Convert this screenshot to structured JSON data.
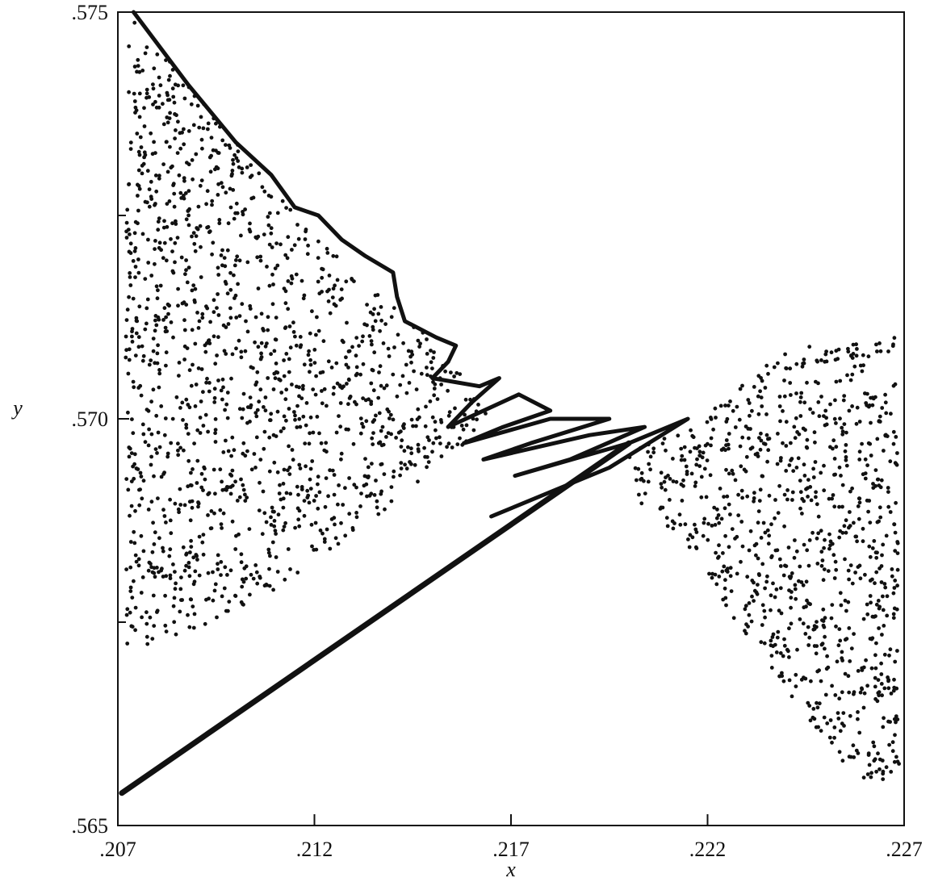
{
  "chart_data": {
    "type": "scatter",
    "title": "",
    "xlabel": "x",
    "ylabel": "y",
    "xlim": [
      0.207,
      0.227
    ],
    "ylim": [
      0.565,
      0.575
    ],
    "grid": false,
    "x_ticks": [
      ".207",
      ".212",
      ".217",
      ".222",
      ".227"
    ],
    "x_tick_values": [
      0.207,
      0.212,
      0.217,
      0.222,
      0.227
    ],
    "y_ticks": [
      ".575",
      ".570",
      ".565"
    ],
    "y_tick_values": [
      0.575,
      0.57,
      0.565
    ],
    "y_minor_ticks": [
      0.5725,
      0.5675
    ],
    "series": [
      {
        "kind": "points",
        "regions": [
          {
            "polygon": [
              [
                0.2072,
                0.575
              ],
              [
                0.2085,
                0.5743
              ],
              [
                0.2105,
                0.5731
              ],
              [
                0.2118,
                0.5724
              ],
              [
                0.2132,
                0.5717
              ],
              [
                0.2142,
                0.5713
              ],
              [
                0.2148,
                0.5711
              ],
              [
                0.2155,
                0.5707
              ],
              [
                0.2165,
                0.57
              ],
              [
                0.215,
                0.5693
              ],
              [
                0.213,
                0.5686
              ],
              [
                0.211,
                0.5679
              ],
              [
                0.209,
                0.5674
              ],
              [
                0.2072,
                0.5671
              ]
            ],
            "count": 1400
          },
          {
            "polygon": [
              [
                0.22,
                0.5696
              ],
              [
                0.2218,
                0.57
              ],
              [
                0.224,
                0.5709
              ],
              [
                0.2252,
                0.5709
              ],
              [
                0.2268,
                0.571
              ],
              [
                0.2269,
                0.5655
              ],
              [
                0.2258,
                0.5656
              ],
              [
                0.2245,
                0.5663
              ],
              [
                0.223,
                0.5673
              ],
              [
                0.2215,
                0.5684
              ],
              [
                0.22,
                0.5691
              ]
            ],
            "count": 900
          }
        ]
      },
      {
        "kind": "curve",
        "points": [
          [
            0.2074,
            0.575
          ],
          [
            0.2088,
            0.5741
          ],
          [
            0.21,
            0.5734
          ],
          [
            0.2109,
            0.573
          ],
          [
            0.2115,
            0.5726
          ],
          [
            0.2121,
            0.5725
          ],
          [
            0.2127,
            0.5722
          ],
          [
            0.2133,
            0.572
          ],
          [
            0.214,
            0.5718
          ],
          [
            0.2141,
            0.5715
          ],
          [
            0.2143,
            0.5712
          ],
          [
            0.2151,
            0.571
          ],
          [
            0.2156,
            0.5709
          ],
          [
            0.2154,
            0.5707
          ],
          [
            0.215,
            0.5705
          ],
          [
            0.2162,
            0.5704
          ],
          [
            0.2167,
            0.5705
          ],
          [
            0.216,
            0.5702
          ],
          [
            0.2154,
            0.5699
          ],
          [
            0.2172,
            0.5703
          ],
          [
            0.218,
            0.5701
          ],
          [
            0.2168,
            0.5699
          ],
          [
            0.2158,
            0.5697
          ],
          [
            0.218,
            0.57
          ],
          [
            0.2195,
            0.57
          ],
          [
            0.2175,
            0.5697
          ],
          [
            0.2163,
            0.5695
          ],
          [
            0.219,
            0.5698
          ],
          [
            0.2204,
            0.5699
          ],
          [
            0.2185,
            0.5695
          ],
          [
            0.2171,
            0.5693
          ],
          [
            0.22,
            0.5697
          ],
          [
            0.2215,
            0.57
          ],
          [
            0.2195,
            0.5694
          ],
          [
            0.2165,
            0.5688
          ]
        ]
      },
      {
        "kind": "line",
        "points": [
          [
            0.2071,
            0.5654
          ],
          [
            0.22,
            0.5697
          ]
        ]
      }
    ]
  }
}
